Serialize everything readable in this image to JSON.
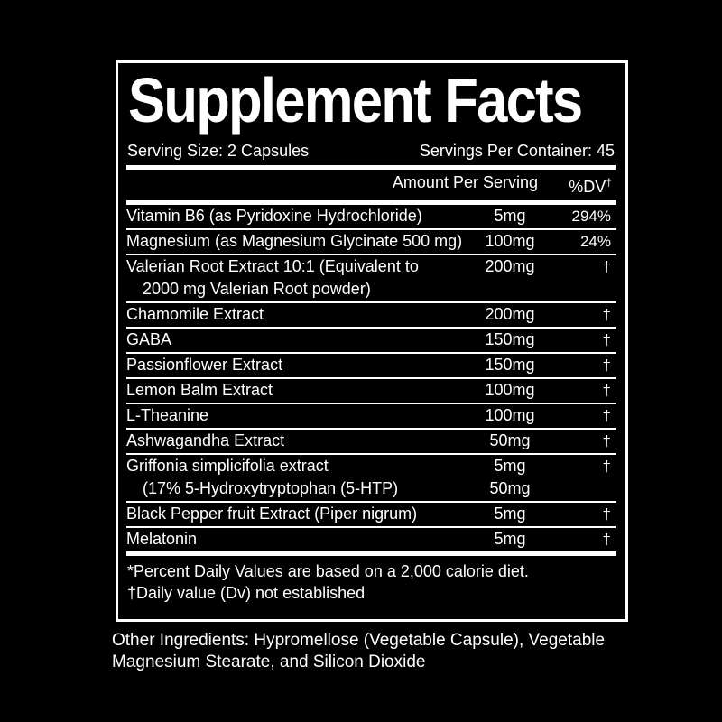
{
  "colors": {
    "background": "#000000",
    "panel_background": "#000000",
    "panel_border": "#ffffff",
    "text": "#ffffff",
    "rule": "#ffffff"
  },
  "label": {
    "title": "Supplement Facts",
    "serving_size": "Serving Size: 2 Capsules",
    "servings_per_container": "Servings Per Container: 45",
    "header": {
      "amount": "Amount Per Serving",
      "dv": "%DV",
      "dv_dagger": "†"
    },
    "rows": [
      {
        "lines": [
          {
            "name": "Vitamin B6 (as Pyridoxine Hydrochloride)",
            "amount": "5mg",
            "dv": "294%",
            "indent": false
          }
        ]
      },
      {
        "lines": [
          {
            "name": "Magnesium (as Magnesium Glycinate 500 mg)",
            "amount": "100mg",
            "dv": "24%",
            "indent": false
          }
        ]
      },
      {
        "lines": [
          {
            "name": "Valerian Root Extract 10:1 (Equivalent to",
            "amount": "200mg",
            "dv": "†",
            "indent": false
          },
          {
            "name": "2000 mg Valerian Root powder)",
            "amount": "",
            "dv": "",
            "indent": true
          }
        ]
      },
      {
        "lines": [
          {
            "name": "Chamomile Extract",
            "amount": "200mg",
            "dv": "†",
            "indent": false
          }
        ]
      },
      {
        "lines": [
          {
            "name": "GABA",
            "amount": "150mg",
            "dv": "†",
            "indent": false
          }
        ]
      },
      {
        "lines": [
          {
            "name": "Passionflower Extract",
            "amount": "150mg",
            "dv": "†",
            "indent": false
          }
        ]
      },
      {
        "lines": [
          {
            "name": "Lemon Balm Extract",
            "amount": "100mg",
            "dv": "†",
            "indent": false
          }
        ]
      },
      {
        "lines": [
          {
            "name": "L-Theanine",
            "amount": "100mg",
            "dv": "†",
            "indent": false
          }
        ]
      },
      {
        "lines": [
          {
            "name": "Ashwagandha Extract",
            "amount": "50mg",
            "dv": "†",
            "indent": false
          }
        ]
      },
      {
        "lines": [
          {
            "name": "Griffonia simplicifolia extract",
            "amount": "5mg",
            "dv": "†",
            "indent": false
          },
          {
            "name": "(17% 5-Hydroxytryptophan (5-HTP)",
            "amount": "50mg",
            "dv": "",
            "indent": true
          }
        ]
      },
      {
        "lines": [
          {
            "name": "Black Pepper fruit Extract (Piper nigrum)",
            "amount": "5mg",
            "dv": "†",
            "indent": false
          }
        ]
      },
      {
        "lines": [
          {
            "name": "Melatonin",
            "amount": "5mg",
            "dv": "†",
            "indent": false
          }
        ]
      }
    ],
    "footnotes": [
      "*Percent Daily Values are based on a 2,000 calorie diet.",
      "†Daily value (Dv) not established"
    ]
  },
  "other_ingredients": "Other Ingredients: Hypromellose (Vegetable Capsule), Vegetable Magnesium Stearate, and Silicon Dioxide"
}
